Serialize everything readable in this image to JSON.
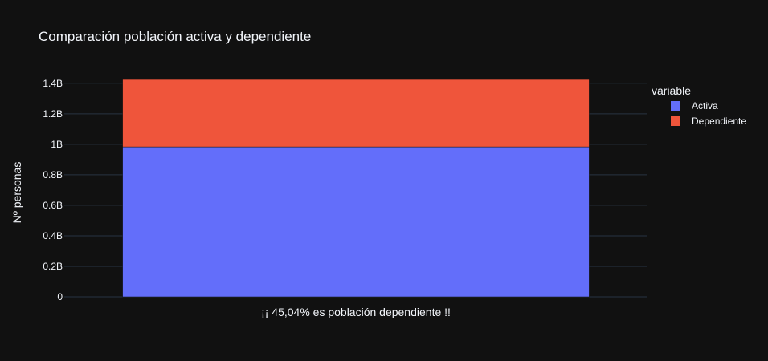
{
  "chart_data": {
    "type": "bar",
    "barmode": "stack",
    "title": "Comparación población activa y dependiente",
    "xlabel": "",
    "ylabel": "Nº personas",
    "categories": [
      "¡¡  45,04% es población dependiente  !!"
    ],
    "series": [
      {
        "name": "Activa",
        "values": [
          983000000
        ],
        "color": "#636efa"
      },
      {
        "name": "Dependiente",
        "values": [
          442000000
        ],
        "color": "#ef553b"
      }
    ],
    "ylim": [
      0,
      1420000000
    ],
    "yticks": [
      {
        "value": 0,
        "label": "0"
      },
      {
        "value": 200000000,
        "label": "0.2B"
      },
      {
        "value": 400000000,
        "label": "0.4B"
      },
      {
        "value": 600000000,
        "label": "0.6B"
      },
      {
        "value": 800000000,
        "label": "0.8B"
      },
      {
        "value": 1000000000,
        "label": "1B"
      },
      {
        "value": 1200000000,
        "label": "1.2B"
      },
      {
        "value": 1400000000,
        "label": "1.4B"
      }
    ],
    "grid": true,
    "legend": {
      "title": "variable",
      "placement": "top-right"
    },
    "colors": {
      "background": "#111111",
      "grid": "#283442",
      "text": "#f2f5fa"
    }
  }
}
